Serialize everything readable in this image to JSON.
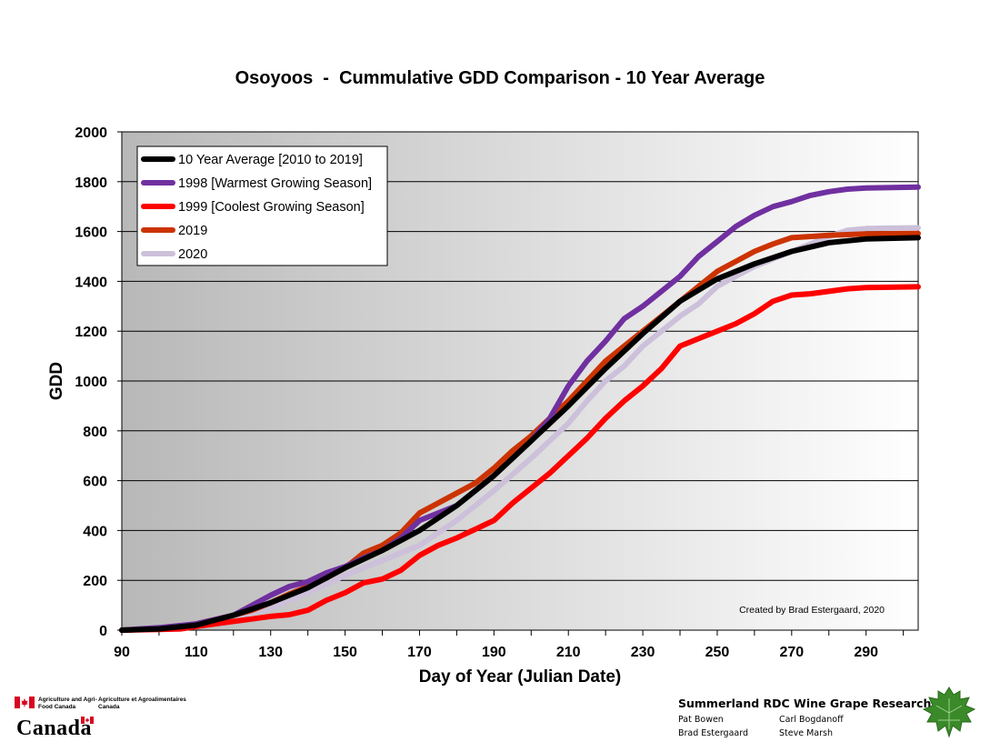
{
  "colors": {
    "avg": "#000000",
    "warm": "#7030a0",
    "cool": "#ff0000",
    "y2019": "#cc3300",
    "y2020": "#ccc0da",
    "plot_bg_left": "#b8b8b8",
    "plot_bg_right": "#ffffff",
    "leaf": "#3a8a2a",
    "flag_red": "#d80621"
  },
  "chart_data": {
    "type": "line",
    "title": "Osoyoos  -  Cummulative GDD Comparison - 10 Year Average",
    "xlabel": "Day of Year (Julian Date)",
    "ylabel": "GDD",
    "xlim": [
      90,
      304
    ],
    "ylim": [
      0,
      2000
    ],
    "xticks": [
      90,
      110,
      130,
      150,
      170,
      190,
      210,
      230,
      250,
      270,
      290
    ],
    "yticks": [
      0,
      200,
      400,
      600,
      800,
      1000,
      1200,
      1400,
      1600,
      1800,
      2000
    ],
    "grid": "horizontal",
    "legend_position": "top-left",
    "annotation": "Created by Brad Estergaard, 2020",
    "series": [
      {
        "name": "10 Year Average [2010 to 2019]",
        "color": "#000000",
        "points": [
          [
            90,
            0
          ],
          [
            100,
            5
          ],
          [
            110,
            20
          ],
          [
            120,
            60
          ],
          [
            130,
            110
          ],
          [
            140,
            170
          ],
          [
            150,
            250
          ],
          [
            160,
            320
          ],
          [
            170,
            400
          ],
          [
            180,
            500
          ],
          [
            190,
            620
          ],
          [
            200,
            760
          ],
          [
            210,
            900
          ],
          [
            220,
            1050
          ],
          [
            230,
            1190
          ],
          [
            240,
            1320
          ],
          [
            250,
            1410
          ],
          [
            260,
            1470
          ],
          [
            270,
            1520
          ],
          [
            280,
            1555
          ],
          [
            290,
            1570
          ],
          [
            304,
            1575
          ]
        ]
      },
      {
        "name": "1998 [Warmest Growing Season]",
        "color": "#7030a0",
        "points": [
          [
            90,
            0
          ],
          [
            100,
            10
          ],
          [
            110,
            25
          ],
          [
            120,
            60
          ],
          [
            125,
            100
          ],
          [
            130,
            140
          ],
          [
            135,
            175
          ],
          [
            140,
            195
          ],
          [
            145,
            230
          ],
          [
            150,
            255
          ],
          [
            155,
            290
          ],
          [
            160,
            320
          ],
          [
            165,
            370
          ],
          [
            170,
            440
          ],
          [
            180,
            500
          ],
          [
            190,
            620
          ],
          [
            200,
            760
          ],
          [
            205,
            850
          ],
          [
            210,
            980
          ],
          [
            215,
            1080
          ],
          [
            220,
            1160
          ],
          [
            225,
            1250
          ],
          [
            230,
            1300
          ],
          [
            235,
            1360
          ],
          [
            240,
            1420
          ],
          [
            245,
            1500
          ],
          [
            250,
            1560
          ],
          [
            255,
            1620
          ],
          [
            260,
            1665
          ],
          [
            265,
            1700
          ],
          [
            270,
            1720
          ],
          [
            275,
            1745
          ],
          [
            280,
            1760
          ],
          [
            285,
            1770
          ],
          [
            290,
            1775
          ],
          [
            304,
            1778
          ]
        ]
      },
      {
        "name": "1999 [Coolest Growing Season]",
        "color": "#ff0000",
        "points": [
          [
            90,
            0
          ],
          [
            100,
            3
          ],
          [
            106,
            5
          ],
          [
            110,
            15
          ],
          [
            120,
            35
          ],
          [
            125,
            45
          ],
          [
            130,
            55
          ],
          [
            135,
            62
          ],
          [
            140,
            80
          ],
          [
            145,
            120
          ],
          [
            150,
            150
          ],
          [
            155,
            190
          ],
          [
            160,
            205
          ],
          [
            165,
            240
          ],
          [
            170,
            300
          ],
          [
            175,
            340
          ],
          [
            180,
            370
          ],
          [
            185,
            405
          ],
          [
            190,
            440
          ],
          [
            195,
            510
          ],
          [
            200,
            570
          ],
          [
            205,
            630
          ],
          [
            210,
            700
          ],
          [
            215,
            770
          ],
          [
            220,
            850
          ],
          [
            225,
            920
          ],
          [
            230,
            980
          ],
          [
            235,
            1050
          ],
          [
            240,
            1140
          ],
          [
            245,
            1170
          ],
          [
            250,
            1200
          ],
          [
            255,
            1230
          ],
          [
            260,
            1270
          ],
          [
            265,
            1320
          ],
          [
            270,
            1345
          ],
          [
            275,
            1350
          ],
          [
            280,
            1360
          ],
          [
            285,
            1370
          ],
          [
            290,
            1375
          ],
          [
            304,
            1378
          ]
        ]
      },
      {
        "name": "2019",
        "color": "#cc3300",
        "points": [
          [
            90,
            0
          ],
          [
            100,
            5
          ],
          [
            110,
            25
          ],
          [
            120,
            60
          ],
          [
            125,
            80
          ],
          [
            130,
            110
          ],
          [
            135,
            145
          ],
          [
            140,
            175
          ],
          [
            145,
            210
          ],
          [
            150,
            250
          ],
          [
            155,
            310
          ],
          [
            160,
            340
          ],
          [
            165,
            390
          ],
          [
            170,
            470
          ],
          [
            175,
            510
          ],
          [
            180,
            550
          ],
          [
            185,
            590
          ],
          [
            190,
            650
          ],
          [
            195,
            720
          ],
          [
            200,
            780
          ],
          [
            205,
            850
          ],
          [
            210,
            920
          ],
          [
            215,
            1000
          ],
          [
            220,
            1080
          ],
          [
            225,
            1140
          ],
          [
            230,
            1200
          ],
          [
            235,
            1260
          ],
          [
            240,
            1320
          ],
          [
            245,
            1380
          ],
          [
            250,
            1440
          ],
          [
            255,
            1480
          ],
          [
            260,
            1520
          ],
          [
            265,
            1550
          ],
          [
            270,
            1575
          ],
          [
            275,
            1580
          ],
          [
            280,
            1585
          ],
          [
            290,
            1590
          ],
          [
            304,
            1592
          ]
        ]
      },
      {
        "name": "2020",
        "color": "#ccc0da",
        "points": [
          [
            90,
            0
          ],
          [
            100,
            5
          ],
          [
            110,
            25
          ],
          [
            120,
            50
          ],
          [
            130,
            90
          ],
          [
            140,
            150
          ],
          [
            150,
            220
          ],
          [
            160,
            280
          ],
          [
            170,
            340
          ],
          [
            180,
            440
          ],
          [
            190,
            560
          ],
          [
            200,
            690
          ],
          [
            210,
            830
          ],
          [
            215,
            920
          ],
          [
            220,
            1000
          ],
          [
            225,
            1060
          ],
          [
            230,
            1140
          ],
          [
            235,
            1200
          ],
          [
            240,
            1260
          ],
          [
            245,
            1310
          ],
          [
            250,
            1380
          ],
          [
            255,
            1420
          ],
          [
            260,
            1460
          ],
          [
            265,
            1490
          ],
          [
            270,
            1520
          ],
          [
            275,
            1550
          ],
          [
            280,
            1580
          ],
          [
            285,
            1605
          ],
          [
            290,
            1612
          ],
          [
            304,
            1615
          ]
        ]
      }
    ]
  },
  "footer": {
    "aafc_en": "Agriculture and Agri-Food Canada",
    "aafc_fr": "Agriculture et Agroalimentaires Canada",
    "wordmark": "Canada",
    "research_title": "Summerland RDC Wine Grape Research",
    "people": [
      "Pat Bowen",
      "Carl Bogdanoff",
      "Brad Estergaard",
      "Steve Marsh"
    ]
  }
}
